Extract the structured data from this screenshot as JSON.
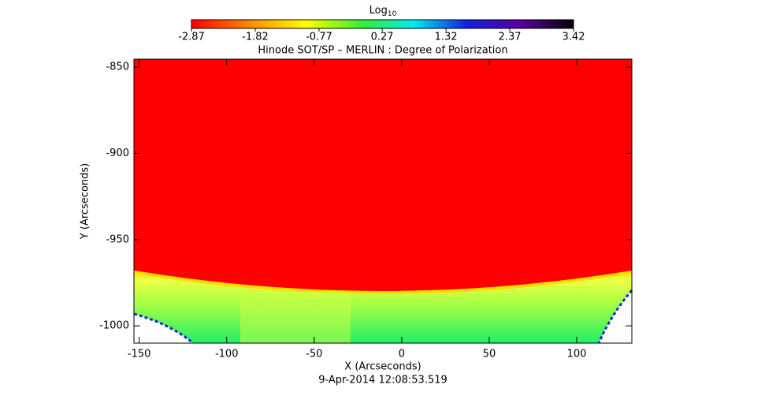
{
  "chart_data": {
    "type": "image",
    "title": "Hinode SOT/SP – MERLIN : Degree of Polarization",
    "xlabel": "X (Arcseconds)",
    "ylabel": "Y (Arcseconds)",
    "footer": "9-Apr-2014 12:08:53.519",
    "xlim": [
      -153,
      131.5
    ],
    "ylim": [
      -1010,
      -845.4
    ],
    "xticks": [
      -150,
      -100,
      -50,
      0,
      50,
      100
    ],
    "yticks": [
      -850,
      -900,
      -950,
      -1000
    ],
    "colorbar": {
      "label": "Log",
      "label_sub": "10",
      "lim": [
        -2.87,
        3.42
      ],
      "ticks": [
        -2.87,
        -1.82,
        -0.77,
        0.27,
        1.32,
        2.37,
        3.42
      ]
    }
  }
}
